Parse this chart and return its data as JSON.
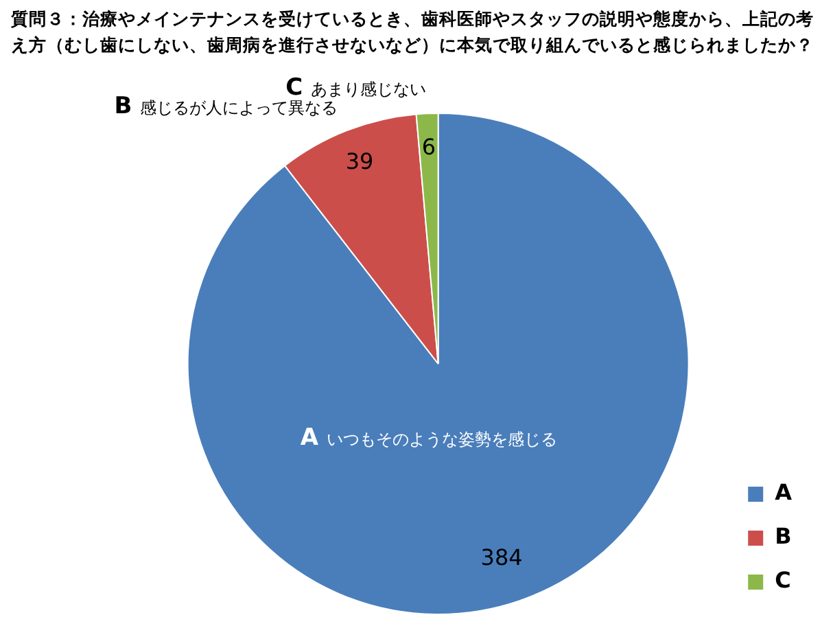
{
  "chart_data": {
    "type": "pie",
    "title": "質問３：治療やメインテナンスを受けているとき、歯科医師やスタッフの説明や態度から、上記の考え方（むし歯にしない、歯周病を進行させないなど）に本気で取り組んでいると感じられましたか？",
    "categories": [
      "A",
      "B",
      "C"
    ],
    "values": [
      384,
      39,
      6
    ],
    "colors": [
      "#4a7ebb",
      "#cc4e4a",
      "#8cb84a"
    ],
    "annotations": [
      "いつもそのような姿勢を感じる",
      "感じるが人によって異なる",
      "あまり感じない"
    ],
    "data_labels": true,
    "legend": "bottom right"
  }
}
